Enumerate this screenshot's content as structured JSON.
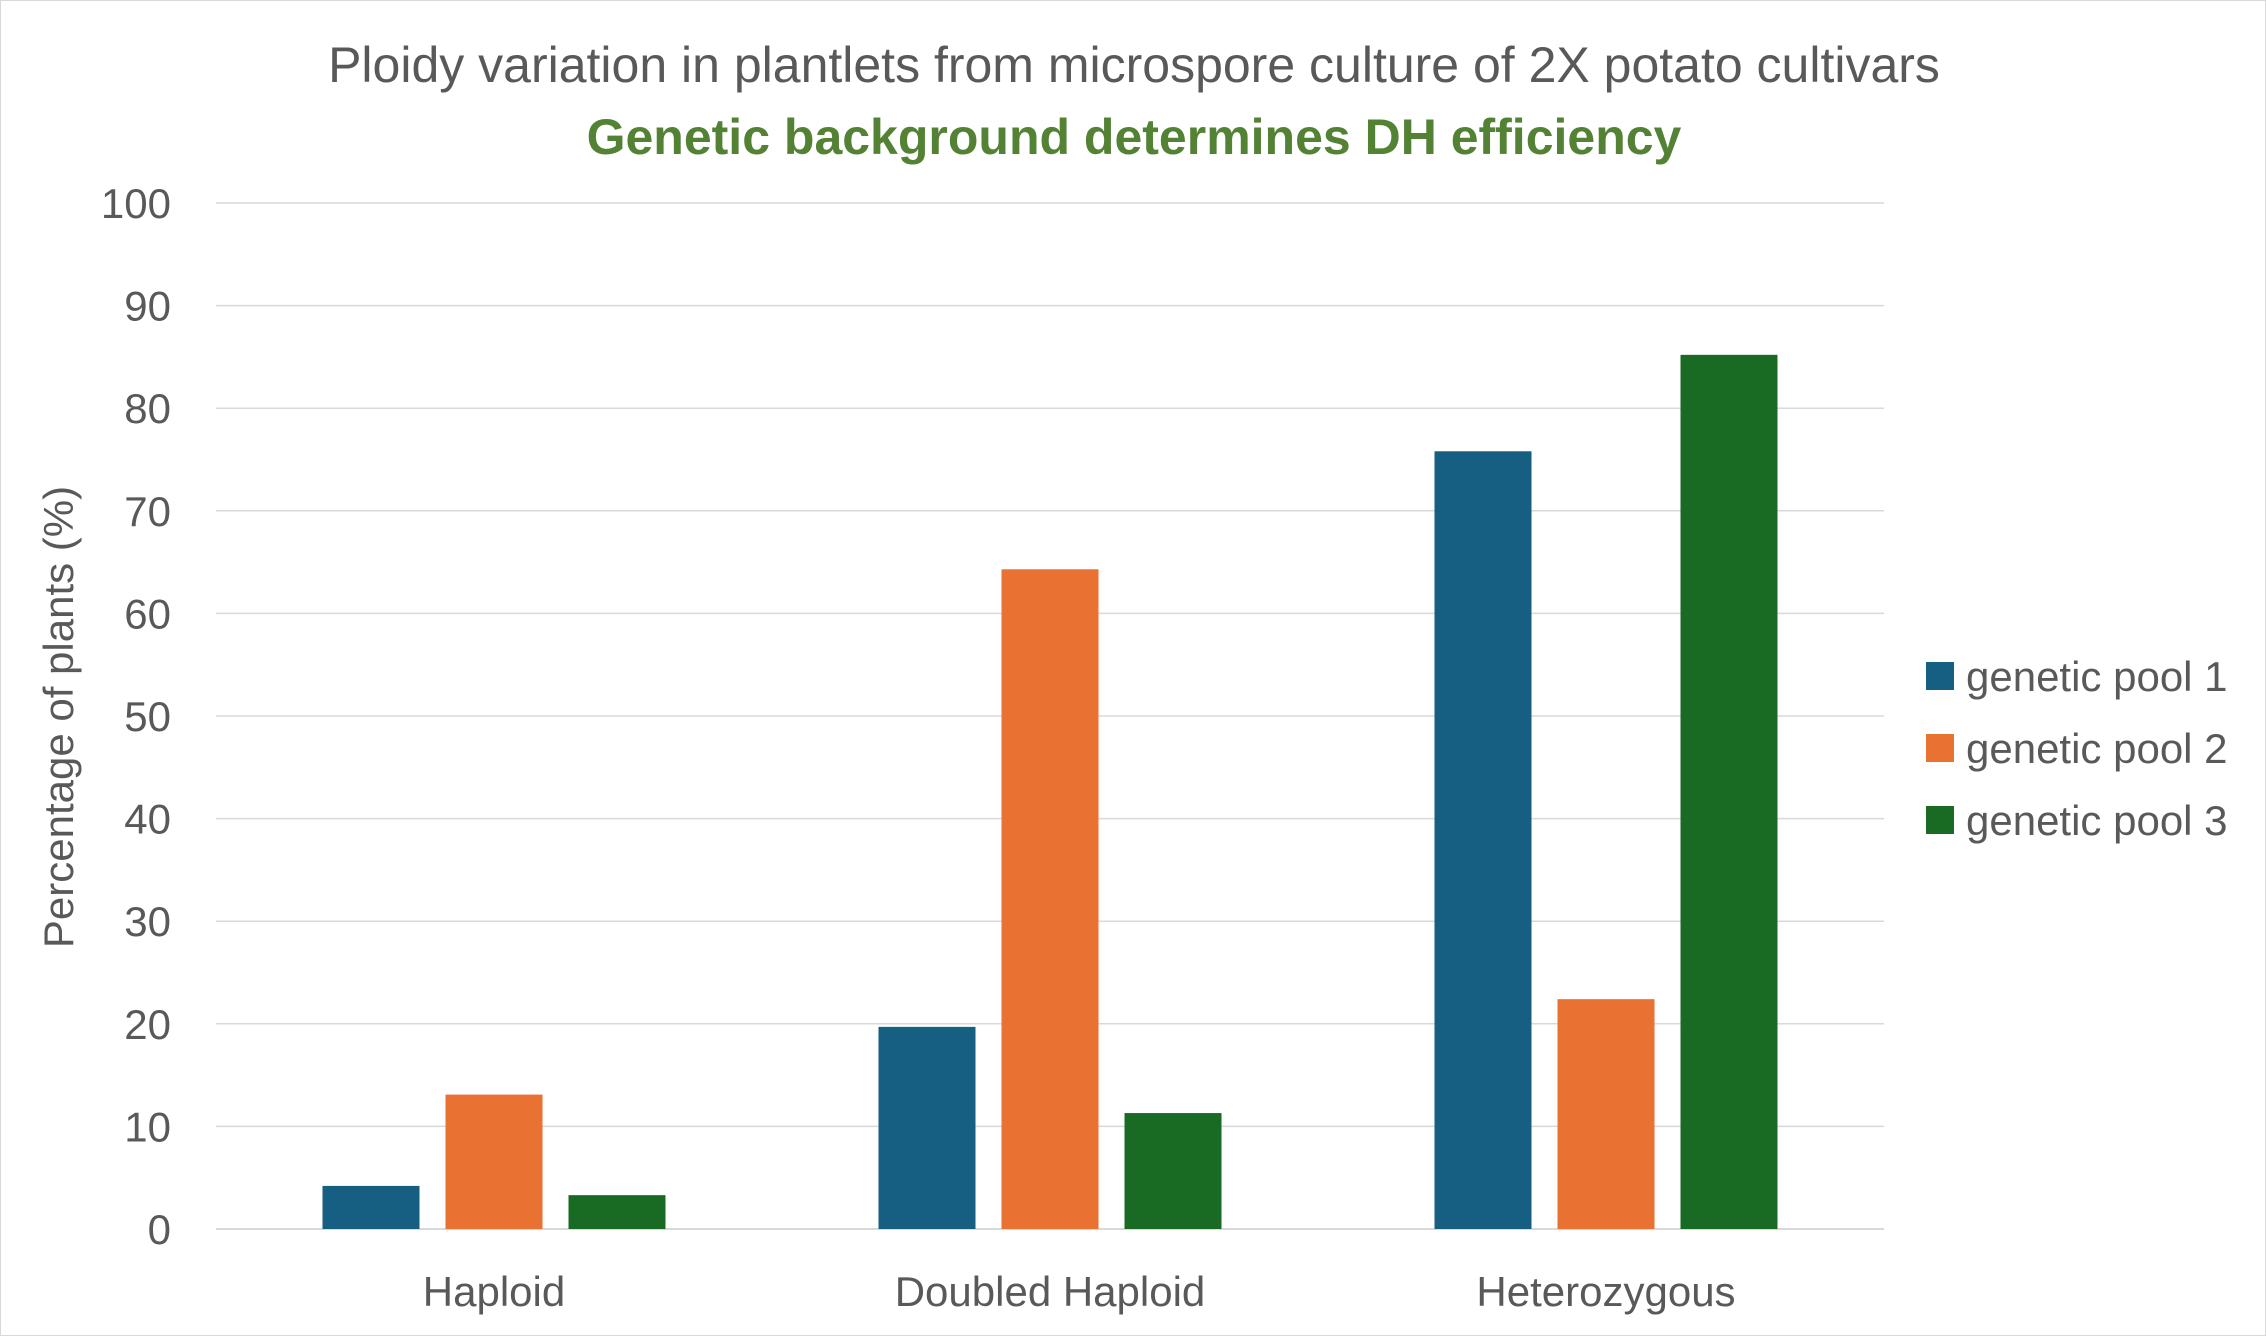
{
  "chart_data": {
    "type": "bar",
    "title": "Ploidy variation in plantlets from microspore culture of 2X potato cultivars",
    "subtitle": "Genetic background determines DH efficiency",
    "xlabel": "",
    "ylabel": "Percentage of plants (%)",
    "ylim": [
      0,
      100
    ],
    "yticks": [
      0,
      10,
      20,
      30,
      40,
      50,
      60,
      70,
      80,
      90,
      100
    ],
    "grid": true,
    "legend_position": "right",
    "categories": [
      "Haploid",
      "Doubled Haploid",
      "Heterozygous"
    ],
    "series": [
      {
        "name": "genetic pool 1",
        "color": "#175f82",
        "values": [
          4.2,
          19.7,
          75.8
        ]
      },
      {
        "name": "genetic pool 2",
        "color": "#e97132",
        "values": [
          13.1,
          64.3,
          22.4
        ]
      },
      {
        "name": "genetic pool 3",
        "color": "#196b24",
        "values": [
          3.3,
          11.3,
          85.2
        ]
      }
    ],
    "colors": {
      "title": "#595959",
      "subtitle": "#548235",
      "gridline": "#d9d9d9"
    }
  }
}
